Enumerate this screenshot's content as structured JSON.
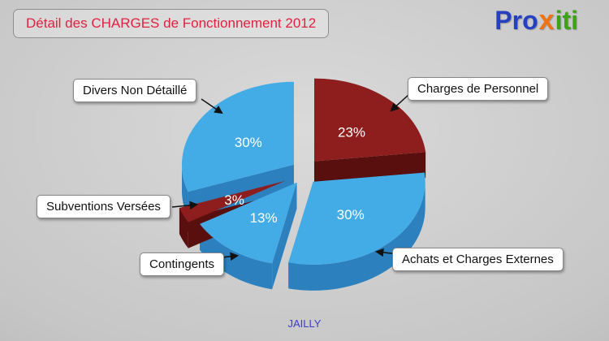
{
  "header": {
    "title": "Détail des CHARGES de Fonctionnement 2012",
    "title_color": "#e0213f"
  },
  "logo": {
    "pro": "Pro",
    "x": "x",
    "iti": "iti",
    "pro_color": "#2540c0",
    "x_color": "#f0730f",
    "iti_color": "#3da312"
  },
  "footer": {
    "text": "JAILLY",
    "color": "#3c3ccc"
  },
  "chart_data": {
    "type": "pie",
    "title": "Détail des CHARGES de Fonctionnement 2012",
    "unit": "%",
    "style": "3d-exploded",
    "direction": "clockwise",
    "start_angle_deg": 0,
    "slices": [
      {
        "label": "Charges de Personnel",
        "value": 23,
        "color": "#8e1d1d",
        "side_color": "#5a0f0f",
        "explode": 18
      },
      {
        "label": "Achats et Charges Externes",
        "value": 30,
        "color": "#43ace6",
        "side_color": "#2c80bd",
        "explode": 16
      },
      {
        "label": "Contingents",
        "value": 13,
        "color": "#43ace6",
        "side_color": "#2c80bd",
        "explode": 16
      },
      {
        "label": "Subventions Versées",
        "value": 3,
        "color": "#8e1d1d",
        "side_color": "#5a0f0f",
        "explode": 26
      },
      {
        "label": "Divers Non Détaillé",
        "value": 30,
        "color": "#43ace6",
        "side_color": "#2c80bd",
        "explode": 16
      }
    ]
  }
}
